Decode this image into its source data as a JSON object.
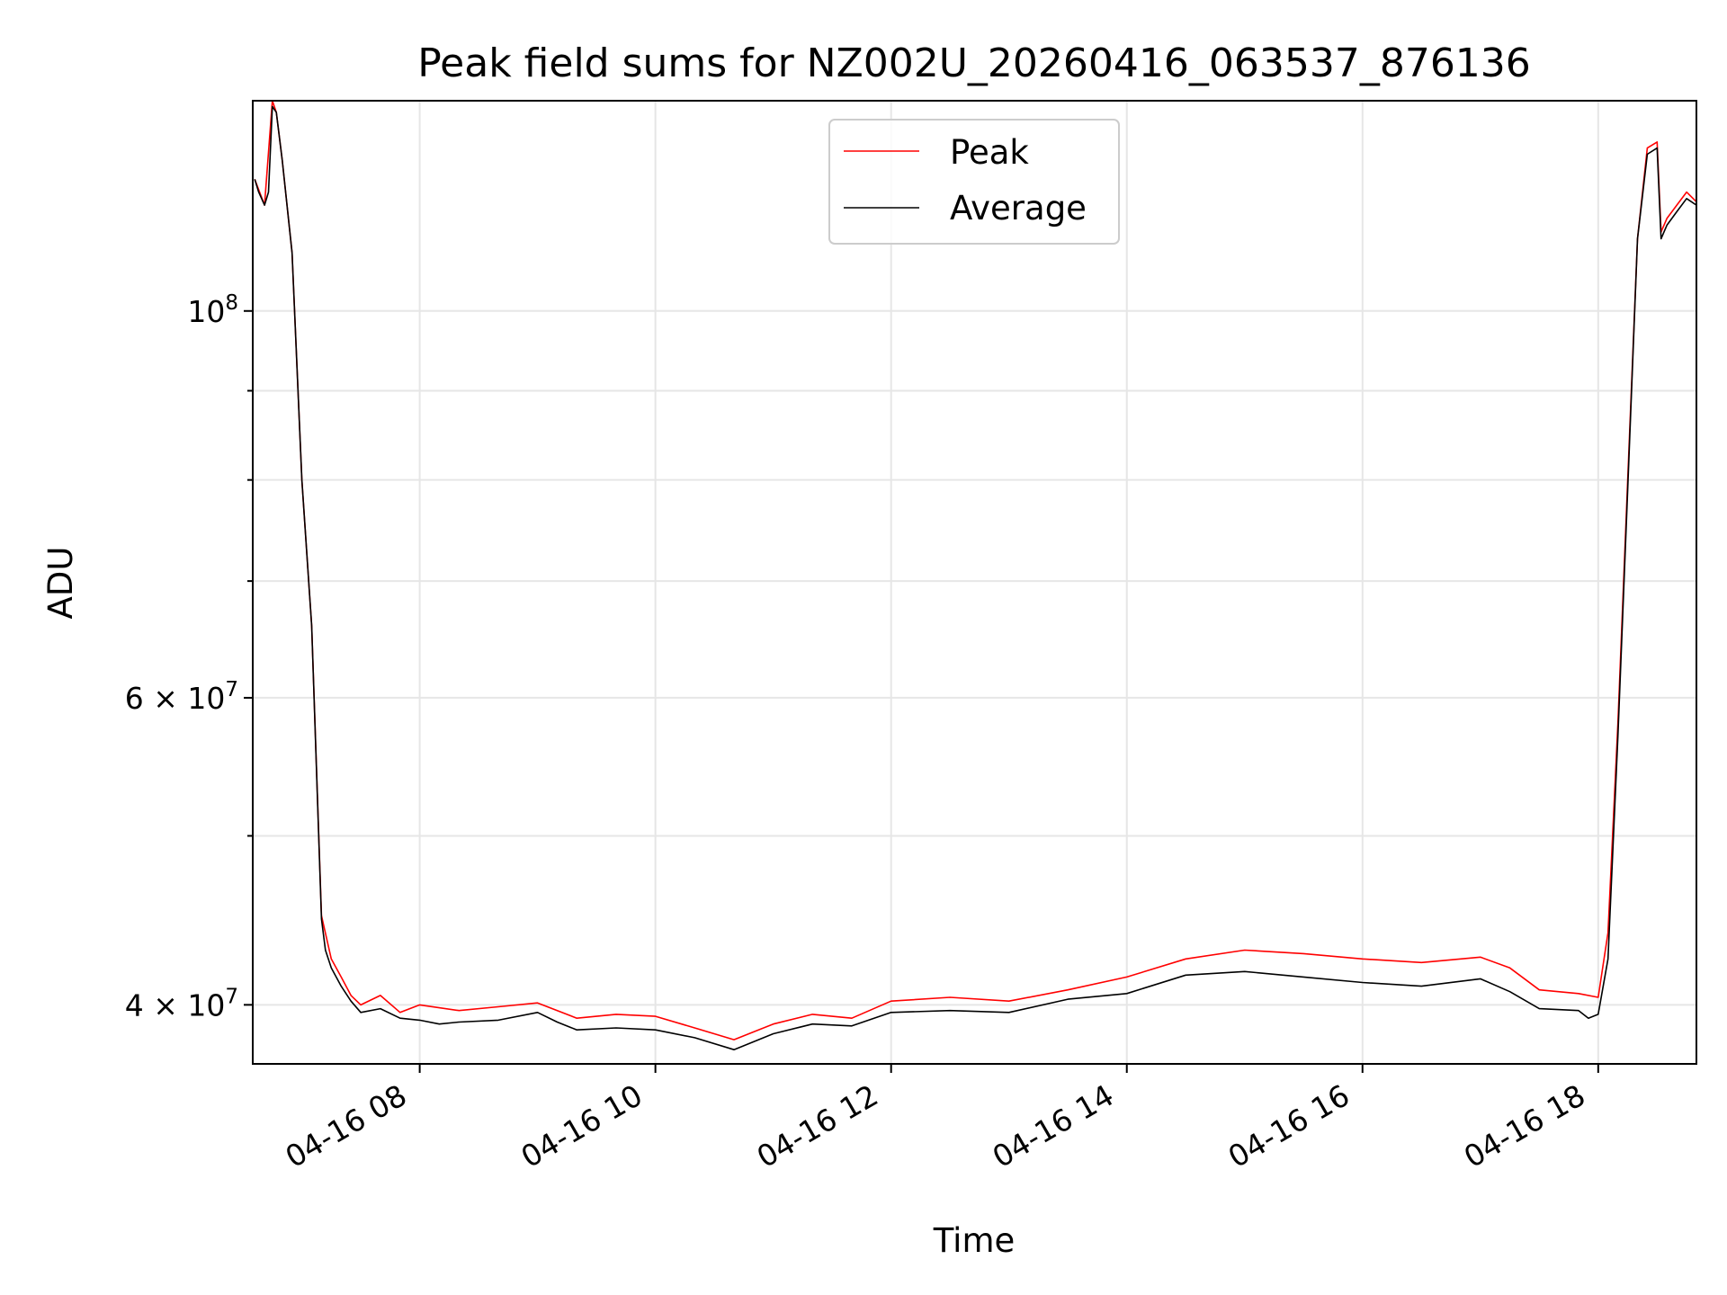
{
  "chart_data": {
    "type": "line",
    "title": "Peak field sums for NZ002U_20260416_063537_876136",
    "xlabel": "Time",
    "ylabel": "ADU",
    "xlim": [
      "2026-04-16 06:35",
      "2026-04-16 18:50"
    ],
    "ylim": [
      37000000,
      132000000
    ],
    "yscale": "log",
    "grid": true,
    "legend_position": "top-center",
    "x_ticks": [
      {
        "value": "2026-04-16 08:00",
        "label": "04-16 08"
      },
      {
        "value": "2026-04-16 10:00",
        "label": "04-16 10"
      },
      {
        "value": "2026-04-16 12:00",
        "label": "04-16 12"
      },
      {
        "value": "2026-04-16 14:00",
        "label": "04-16 14"
      },
      {
        "value": "2026-04-16 16:00",
        "label": "04-16 16"
      },
      {
        "value": "2026-04-16 18:00",
        "label": "04-16 18"
      }
    ],
    "y_major_ticks": [
      {
        "value": 40000000,
        "base": "4 × 10",
        "exp": "7"
      },
      {
        "value": 60000000,
        "base": "6 × 10",
        "exp": "7"
      },
      {
        "value": 100000000,
        "base": "10",
        "exp": "8"
      }
    ],
    "y_minor_ticks": [
      50000000,
      70000000,
      80000000,
      90000000
    ],
    "series": [
      {
        "name": "Peak",
        "color": "#ff0000",
        "x": [
          "2026-04-16 06:36",
          "2026-04-16 06:41",
          "2026-04-16 06:45",
          "2026-04-16 06:47",
          "2026-04-16 06:50",
          "2026-04-16 06:55",
          "2026-04-16 07:00",
          "2026-04-16 07:05",
          "2026-04-16 07:10",
          "2026-04-16 07:15",
          "2026-04-16 07:20",
          "2026-04-16 07:25",
          "2026-04-16 07:30",
          "2026-04-16 07:40",
          "2026-04-16 07:50",
          "2026-04-16 08:00",
          "2026-04-16 08:20",
          "2026-04-16 08:40",
          "2026-04-16 09:00",
          "2026-04-16 09:20",
          "2026-04-16 09:40",
          "2026-04-16 10:00",
          "2026-04-16 10:20",
          "2026-04-16 10:40",
          "2026-04-16 11:00",
          "2026-04-16 11:20",
          "2026-04-16 11:40",
          "2026-04-16 12:00",
          "2026-04-16 12:30",
          "2026-04-16 13:00",
          "2026-04-16 13:30",
          "2026-04-16 14:00",
          "2026-04-16 14:30",
          "2026-04-16 15:00",
          "2026-04-16 15:30",
          "2026-04-16 16:00",
          "2026-04-16 16:30",
          "2026-04-16 17:00",
          "2026-04-16 17:15",
          "2026-04-16 17:30",
          "2026-04-16 17:50",
          "2026-04-16 18:00",
          "2026-04-16 18:05",
          "2026-04-16 18:10",
          "2026-04-16 18:15",
          "2026-04-16 18:20",
          "2026-04-16 18:25",
          "2026-04-16 18:30",
          "2026-04-16 18:32",
          "2026-04-16 18:35",
          "2026-04-16 18:40",
          "2026-04-16 18:45",
          "2026-04-16 18:50"
        ],
        "y": [
          119000000,
          115000000,
          132000000,
          130000000,
          122000000,
          108000000,
          80000000,
          66000000,
          45000000,
          42500000,
          41500000,
          40500000,
          40000000,
          40500000,
          39600000,
          40000000,
          39700000,
          39900000,
          40100000,
          39300000,
          39500000,
          39400000,
          38800000,
          38200000,
          39000000,
          39500000,
          39300000,
          40200000,
          40400000,
          40200000,
          40800000,
          41500000,
          42500000,
          43000000,
          42800000,
          42500000,
          42300000,
          42600000,
          42000000,
          40800000,
          40600000,
          40400000,
          44000000,
          58000000,
          80000000,
          110000000,
          124000000,
          125000000,
          111000000,
          113000000,
          115000000,
          117000000,
          115500000
        ]
      },
      {
        "name": "Average",
        "color": "#000000",
        "x": [
          "2026-04-16 06:36",
          "2026-04-16 06:38",
          "2026-04-16 06:41",
          "2026-04-16 06:43",
          "2026-04-16 06:45",
          "2026-04-16 06:47",
          "2026-04-16 06:50",
          "2026-04-16 06:55",
          "2026-04-16 07:00",
          "2026-04-16 07:05",
          "2026-04-16 07:10",
          "2026-04-16 07:12",
          "2026-04-16 07:15",
          "2026-04-16 07:20",
          "2026-04-16 07:25",
          "2026-04-16 07:30",
          "2026-04-16 07:40",
          "2026-04-16 07:50",
          "2026-04-16 08:00",
          "2026-04-16 08:10",
          "2026-04-16 08:20",
          "2026-04-16 08:40",
          "2026-04-16 09:00",
          "2026-04-16 09:10",
          "2026-04-16 09:20",
          "2026-04-16 09:40",
          "2026-04-16 10:00",
          "2026-04-16 10:20",
          "2026-04-16 10:40",
          "2026-04-16 11:00",
          "2026-04-16 11:20",
          "2026-04-16 11:40",
          "2026-04-16 12:00",
          "2026-04-16 12:30",
          "2026-04-16 13:00",
          "2026-04-16 13:30",
          "2026-04-16 14:00",
          "2026-04-16 14:30",
          "2026-04-16 15:00",
          "2026-04-16 15:30",
          "2026-04-16 16:00",
          "2026-04-16 16:30",
          "2026-04-16 17:00",
          "2026-04-16 17:15",
          "2026-04-16 17:30",
          "2026-04-16 17:50",
          "2026-04-16 17:55",
          "2026-04-16 18:00",
          "2026-04-16 18:05",
          "2026-04-16 18:10",
          "2026-04-16 18:15",
          "2026-04-16 18:20",
          "2026-04-16 18:25",
          "2026-04-16 18:30",
          "2026-04-16 18:32",
          "2026-04-16 18:35",
          "2026-04-16 18:40",
          "2026-04-16 18:45",
          "2026-04-16 18:50"
        ],
        "y": [
          119000000,
          117000000,
          115000000,
          117000000,
          131000000,
          130000000,
          122000000,
          108000000,
          80000000,
          66000000,
          44800000,
          43000000,
          42000000,
          41000000,
          40200000,
          39600000,
          39800000,
          39300000,
          39200000,
          39000000,
          39100000,
          39200000,
          39600000,
          39100000,
          38700000,
          38800000,
          38700000,
          38300000,
          37700000,
          38500000,
          39000000,
          38900000,
          39600000,
          39700000,
          39600000,
          40300000,
          40600000,
          41600000,
          41800000,
          41500000,
          41200000,
          41000000,
          41400000,
          40700000,
          39800000,
          39700000,
          39300000,
          39500000,
          42500000,
          57000000,
          79000000,
          110000000,
          123000000,
          124000000,
          110000000,
          112000000,
          114000000,
          116000000,
          115000000
        ]
      }
    ]
  }
}
